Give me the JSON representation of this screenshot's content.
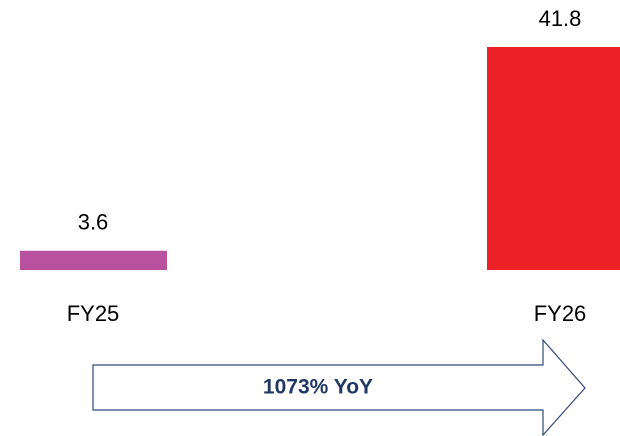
{
  "chart_data": {
    "type": "bar",
    "categories": [
      "FY25",
      "FY26"
    ],
    "values": [
      3.6,
      41.8
    ],
    "colors": [
      "#b8529f",
      "#ec2027"
    ],
    "annotation": "1073% YoY"
  }
}
